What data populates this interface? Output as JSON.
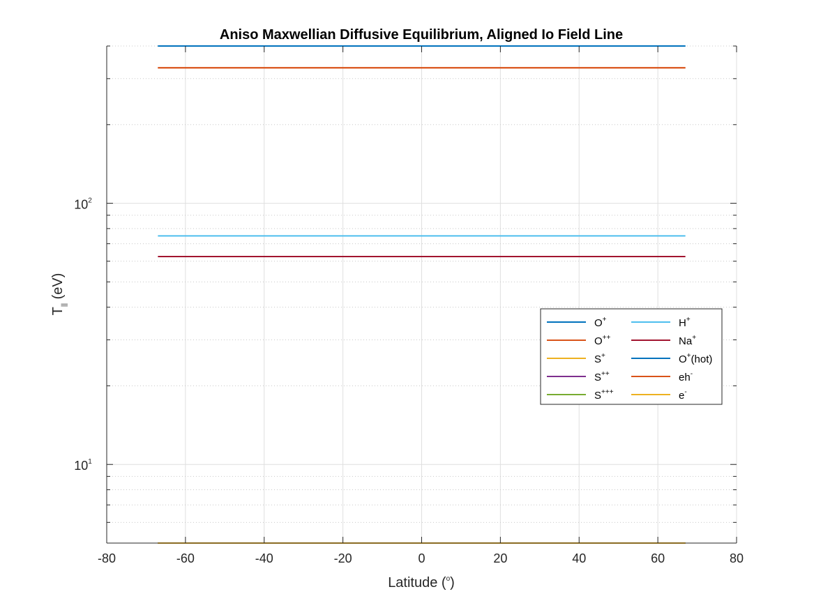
{
  "chart_data": {
    "type": "line",
    "title": "Aniso Maxwellian Diffusive Equilibrium, Aligned Io Field Line",
    "xlabel": {
      "base": "Latitude (",
      "sup": "o",
      "tail": ")"
    },
    "ylabel": {
      "base": "T",
      "sub": "||",
      "tail": " (eV)"
    },
    "xlim": [
      -80,
      80
    ],
    "ylim": [
      5,
      400
    ],
    "yscale": "log",
    "grid": true,
    "minor_grid": true,
    "x_ticks": [
      "-80",
      "-60",
      "-40",
      "-20",
      "0",
      "20",
      "40",
      "60",
      "80"
    ],
    "x_tick_values": [
      -80,
      -60,
      -40,
      -20,
      0,
      20,
      40,
      60,
      80
    ],
    "y_ticks": [
      {
        "base": "10",
        "exp": "1",
        "value": 10
      },
      {
        "base": "10",
        "exp": "2",
        "value": 100
      }
    ],
    "x_range": [
      -67,
      67
    ],
    "legend_position": "right",
    "legend_columns": 2,
    "series": [
      {
        "name": "O+",
        "label": {
          "base": "O",
          "sup": "+",
          "tail": ""
        },
        "color": "#0072BD",
        "value": 400
      },
      {
        "name": "O++",
        "label": {
          "base": "O",
          "sup": "++",
          "tail": ""
        },
        "color": "#D95319",
        "value": 330
      },
      {
        "name": "S+",
        "label": {
          "base": "S",
          "sup": "+",
          "tail": ""
        },
        "color": "#EDB120",
        "value": 5
      },
      {
        "name": "S++",
        "label": {
          "base": "S",
          "sup": "++",
          "tail": ""
        },
        "color": "#7E2F8E",
        "value": 5
      },
      {
        "name": "S+++",
        "label": {
          "base": "S",
          "sup": "+++",
          "tail": ""
        },
        "color": "#77AC30",
        "value": 5
      },
      {
        "name": "H+",
        "label": {
          "base": "H",
          "sup": "+",
          "tail": ""
        },
        "color": "#4DBEEE",
        "value": 75
      },
      {
        "name": "Na+",
        "label": {
          "base": "Na",
          "sup": "+",
          "tail": ""
        },
        "color": "#A2142F",
        "value": 62.5
      },
      {
        "name": "O+(hot)",
        "label": {
          "base": "O",
          "sup": "+",
          "tail": "(hot)"
        },
        "color": "#0072BD",
        "value": 400
      },
      {
        "name": "eh-",
        "label": {
          "base": "eh",
          "sup": "-",
          "tail": ""
        },
        "color": "#D95319",
        "value": 330
      },
      {
        "name": "e-",
        "label": {
          "base": "e",
          "sup": "-",
          "tail": ""
        },
        "color": "#EDB120",
        "value": 5
      }
    ]
  },
  "colors": {
    "axis": "#262626",
    "grid": "#dfdfdf",
    "legend_border": "#262626"
  }
}
